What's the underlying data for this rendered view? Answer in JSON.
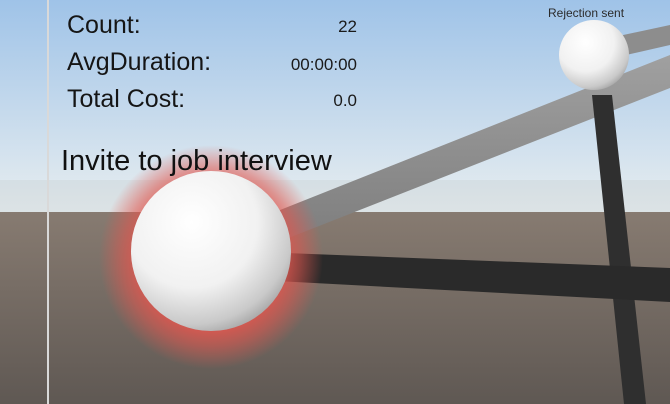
{
  "stats": {
    "count": {
      "label": "Count:",
      "value": "22"
    },
    "avg_duration": {
      "label": "AvgDuration:",
      "value": "00:00:00"
    },
    "total_cost": {
      "label": "Total Cost:",
      "value": "0.0"
    }
  },
  "nodes": {
    "main": {
      "label": "Invite to job interview",
      "highlight_color": "#e0574f"
    },
    "top_right": {
      "label": "Rejection sent"
    }
  },
  "colors": {
    "sky_top": "#9fc3e8",
    "sky_bottom": "#e6eef2",
    "ground_top": "#867b72",
    "ground_bottom": "#5f5853",
    "edge_light": "#8b8b8b",
    "edge_dark": "#2a2a2a"
  }
}
